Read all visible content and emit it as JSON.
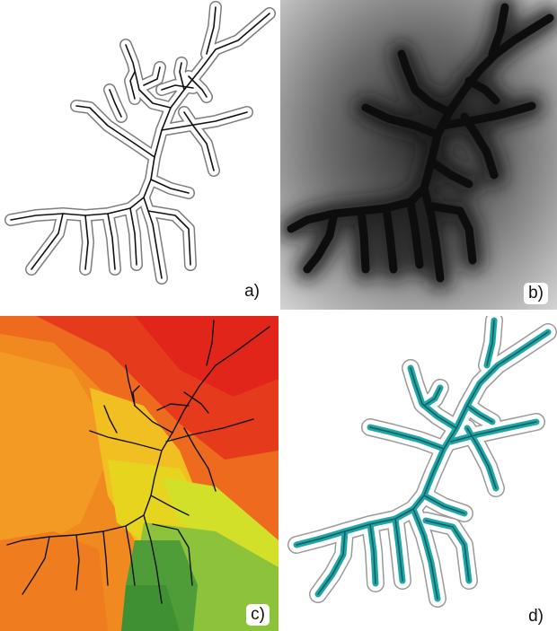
{
  "panels": [
    {
      "id": "a",
      "label": "a)"
    },
    {
      "id": "b",
      "label": "b)"
    },
    {
      "id": "c",
      "label": "c)"
    },
    {
      "id": "d",
      "label": "d)"
    }
  ],
  "colors": {
    "outline": "#8a8a8a",
    "centerline": "#111111",
    "distance_dark": "#111111",
    "distance_light": "#dddddd",
    "region_red": "#e3241b",
    "region_orange": "#f2921f",
    "region_yellow": "#e8e21e",
    "region_green": "#5aa83a",
    "teal_fill": "#1fa3a3"
  }
}
